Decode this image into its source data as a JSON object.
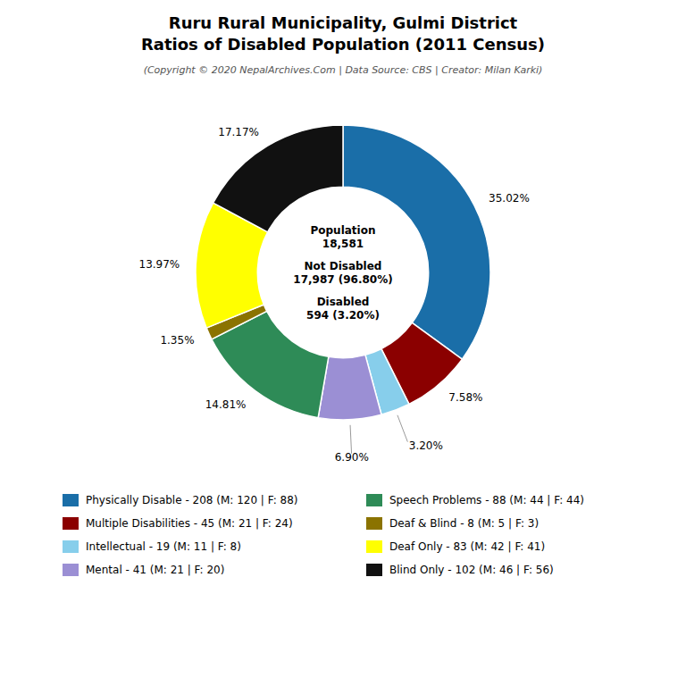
{
  "chart_data": {
    "type": "pie",
    "title": [
      "Ruru Rural Municipality, Gulmi District",
      "Ratios of Disabled Population (2011 Census)"
    ],
    "subtitle": "(Copyright © 2020 NepalArchives.Com | Data Source: CBS | Creator: Milan Karki)",
    "categories": [
      "Physically Disable - 208 (M: 120 | F: 88)",
      "Multiple Disabilities - 45 (M: 21 | F: 24)",
      "Intellectual - 19 (M: 11 | F: 8)",
      "Mental - 41 (M: 21 | F: 20)",
      "Speech Problems - 88 (M: 44 | F: 44)",
      "Deaf & Blind - 8 (M: 5 | F: 3)",
      "Deaf Only - 83 (M: 42 | F: 41)",
      "Blind Only - 102 (M: 46 | F: 56)"
    ],
    "values": [
      35.02,
      7.58,
      3.2,
      6.9,
      14.81,
      1.35,
      13.97,
      17.17
    ],
    "value_labels": [
      "35.02%",
      "7.58%",
      "3.20%",
      "6.90%",
      "14.81%",
      "1.35%",
      "13.97%",
      "17.17%"
    ],
    "colors": [
      "#1a6ea8",
      "#8b0000",
      "#87ceeb",
      "#9b8fd4",
      "#2e8b57",
      "#8b7300",
      "#ffff00",
      "#111111"
    ],
    "data_labels": true,
    "annotations": [
      "Population",
      "18,581",
      "Not Disabled",
      "17,987 (96.80%)",
      "Disabled",
      "594 (3.20%)"
    ]
  }
}
